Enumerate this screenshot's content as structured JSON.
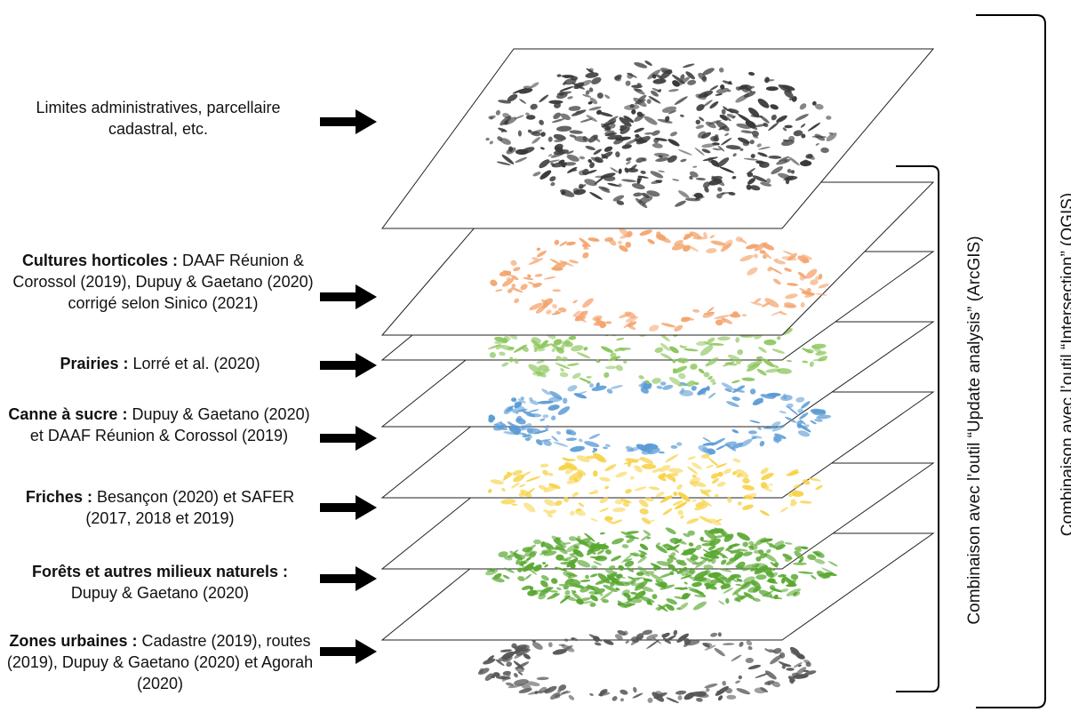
{
  "layers": [
    {
      "id": "base",
      "title": "",
      "text": "Limites administratives, parcellaire cadastral, etc.",
      "fill_color": "#3a3a3a"
    },
    {
      "id": "horticoles",
      "title": "Cultures horticoles :",
      "text": " DAAF Réunion & Corossol (2019), Dupuy & Gaetano (2020) corrigé selon Sinico (2021)",
      "fill_color": "#f4a46e"
    },
    {
      "id": "prairies",
      "title": "Prairies :",
      "text": " Lorré et al. (2020)",
      "fill_color": "#8cc65c"
    },
    {
      "id": "canne",
      "title": "Canne à sucre :",
      "text": " Dupuy & Gaetano (2020) et DAAF Réunion & Corossol (2019)",
      "fill_color": "#5b9bd5"
    },
    {
      "id": "friches",
      "title": "Friches :",
      "text": " Besançon (2020) et SAFER (2017, 2018 et 2019)",
      "fill_color": "#f7d34a"
    },
    {
      "id": "forets",
      "title": "Forêts et autres milieux naturels :",
      "text": " Dupuy & Gaetano (2020)",
      "fill_color": "#5aa832"
    },
    {
      "id": "urbaines",
      "title": "Zones urbaines :",
      "text": " Cadastre (2019), routes (2019), Dupuy & Gaetano (2020) et Agorah (2020)",
      "fill_color": "#555555"
    }
  ],
  "brackets": {
    "arcgis": "Combinaison avec l’outil “Update analysis” (ArcGIS)",
    "qgis": "Combinaison avec l’outil “Intersection” (QGIS)"
  }
}
